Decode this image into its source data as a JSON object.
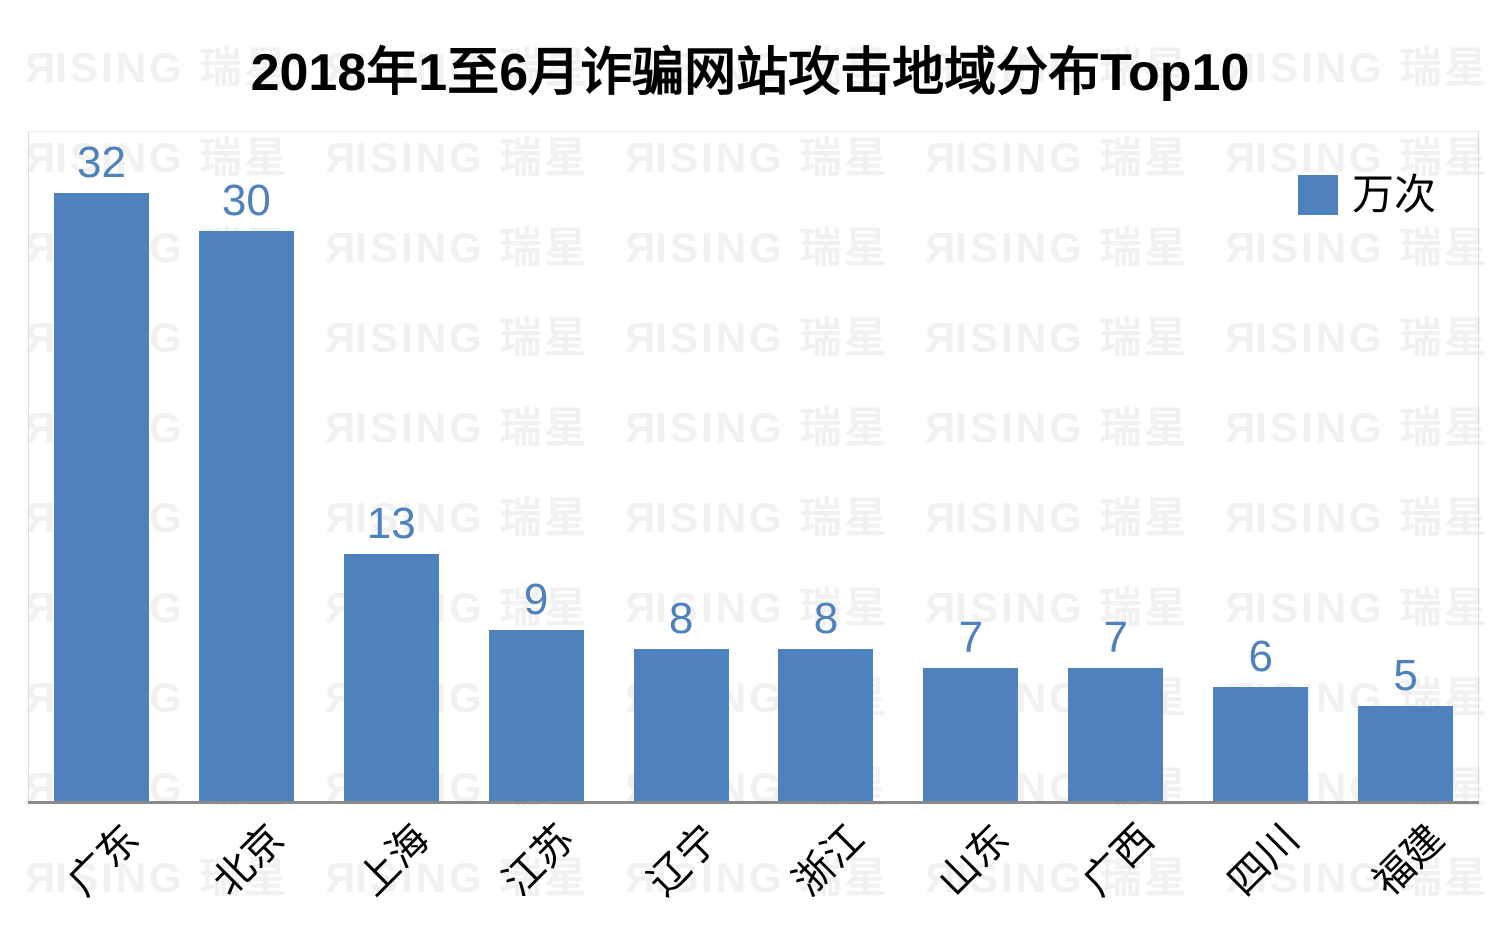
{
  "title": "2018年1至6月诈骗网站攻击地域分布Top10",
  "legend": {
    "label": "万次",
    "color": "#4F81BD"
  },
  "watermark": {
    "text": "RISING 瑞星",
    "color": "#f1f1f1"
  },
  "chart_data": {
    "type": "bar",
    "title": "2018年1至6月诈骗网站攻击地域分布Top10",
    "categories": [
      "广东",
      "北京",
      "上海",
      "江苏",
      "辽宁",
      "浙江",
      "山东",
      "广西",
      "四川",
      "福建"
    ],
    "values": [
      32,
      30,
      13,
      9,
      8,
      8,
      7,
      7,
      6,
      5
    ],
    "series_name": "万次",
    "unit": "万次",
    "bar_color": "#4F81BD",
    "value_label_color": "#4F81BD",
    "axis_line_color": "#8a8a8a",
    "ylim": [
      0,
      35
    ],
    "grid": false,
    "legend_position": "top-right",
    "x_label_rotation_deg": 45
  }
}
